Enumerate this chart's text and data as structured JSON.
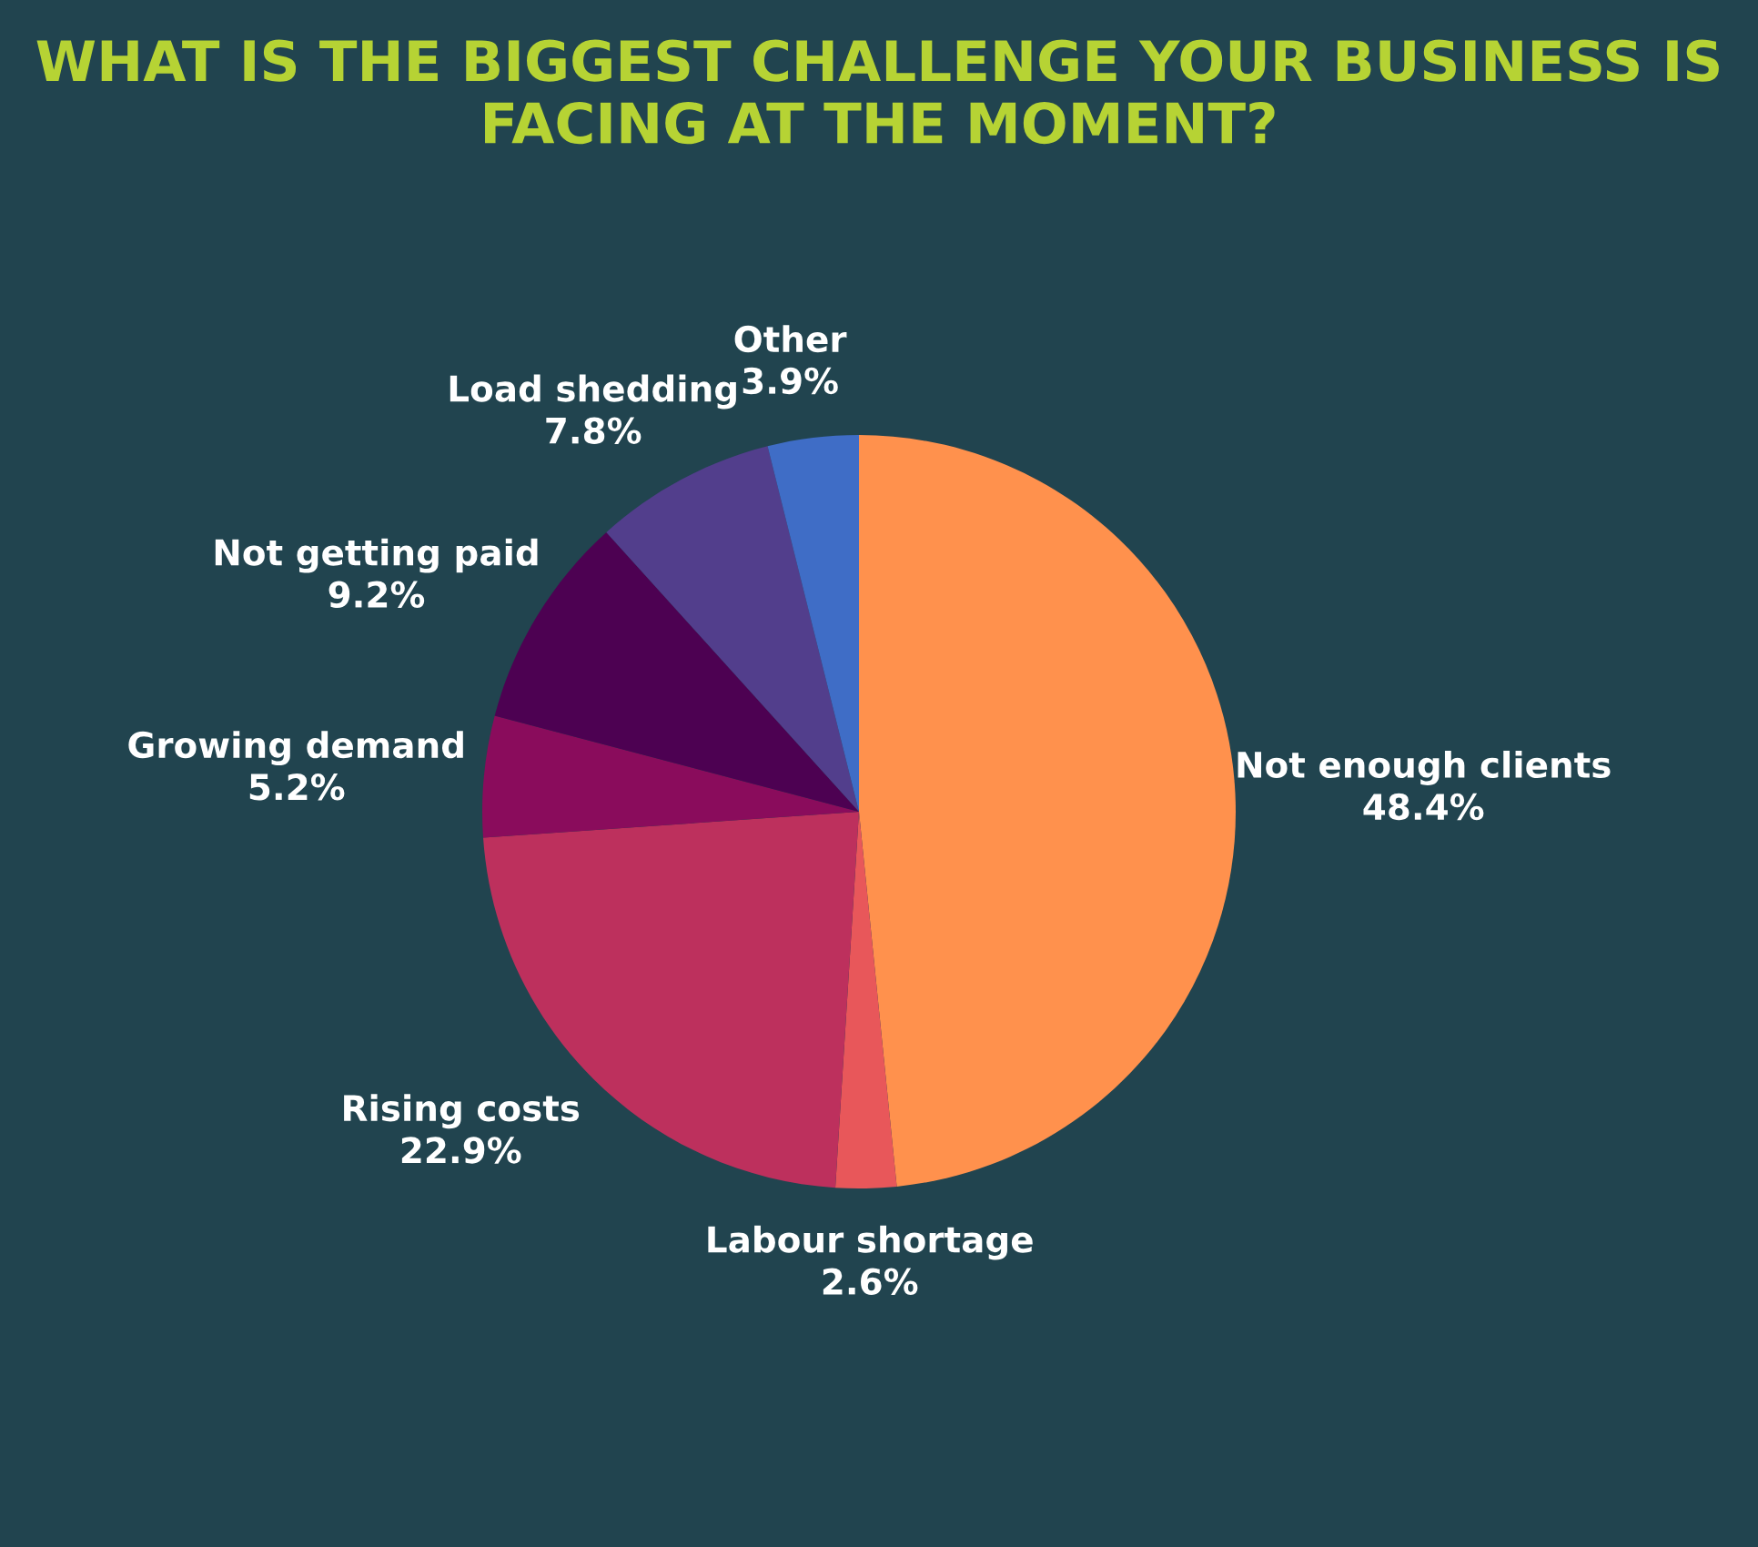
{
  "chart_data": {
    "type": "pie",
    "title": "WHAT IS THE BIGGEST CHALLENGE YOUR BUSINESS IS FACING AT THE MOMENT?",
    "categories": [
      "Not enough clients",
      "Labour shortage",
      "Rising costs",
      "Growing demand",
      "Not getting paid",
      "Load shedding",
      "Other"
    ],
    "values": [
      48.4,
      2.6,
      22.9,
      5.2,
      9.2,
      7.8,
      3.9
    ],
    "colors": [
      "#ff914d",
      "#e8575a",
      "#bd305d",
      "#8a0c5c",
      "#4d0152",
      "#523e8c",
      "#3f6dc6"
    ],
    "value_labels": [
      "48.4%",
      "2.6%",
      "22.9%",
      "5.2%",
      "9.2%",
      "7.8%",
      "3.9%"
    ],
    "legend": false
  }
}
